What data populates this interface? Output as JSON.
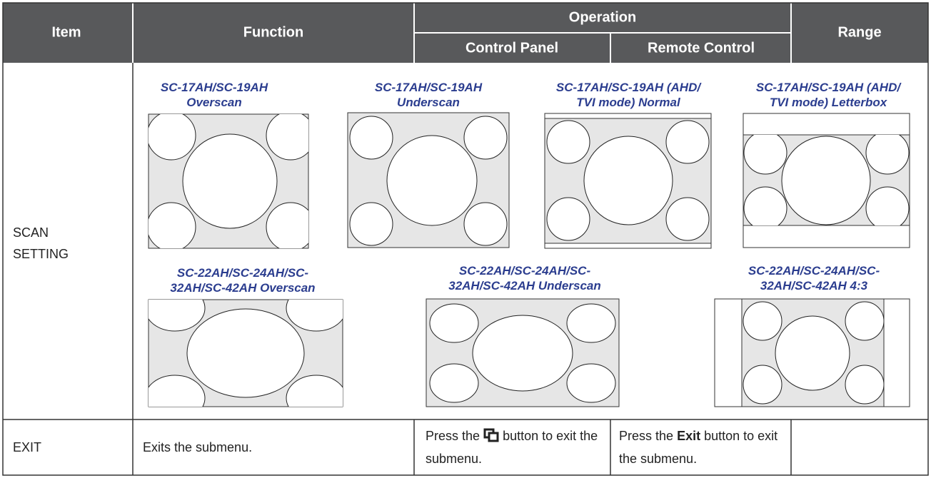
{
  "header": {
    "item": "Item",
    "function": "Function",
    "operation": "Operation",
    "control_panel": "Control Panel",
    "remote_control": "Remote Control",
    "range": "Range"
  },
  "rows": [
    {
      "item": "SCAN SETTING",
      "diagrams": [
        {
          "caption": [
            "SC-17AH/SC-19AH",
            "Overscan"
          ]
        },
        {
          "caption": [
            "SC-17AH/SC-19AH",
            "Underscan"
          ]
        },
        {
          "caption": [
            "SC-17AH/SC-19AH (AHD/",
            "TVI mode) Normal"
          ]
        },
        {
          "caption": [
            "SC-17AH/SC-19AH (AHD/",
            "TVI mode) Letterbox"
          ]
        },
        {
          "caption": [
            "SC-22AH/SC-24AH/SC-",
            "32AH/SC-42AH Overscan"
          ]
        },
        {
          "caption": [
            "SC-22AH/SC-24AH/SC-",
            "32AH/SC-42AH Underscan"
          ]
        },
        {
          "caption": [
            "SC-22AH/SC-24AH/SC-",
            "32AH/SC-42AH 4:3"
          ]
        }
      ]
    },
    {
      "item": "EXIT",
      "function": "Exits the submenu.",
      "control_panel": {
        "before": "Press the",
        "after": "button to exit the submenu."
      },
      "remote_control": {
        "before": "Press the",
        "bold": "Exit",
        "after": "button to exit the submenu."
      }
    }
  ]
}
